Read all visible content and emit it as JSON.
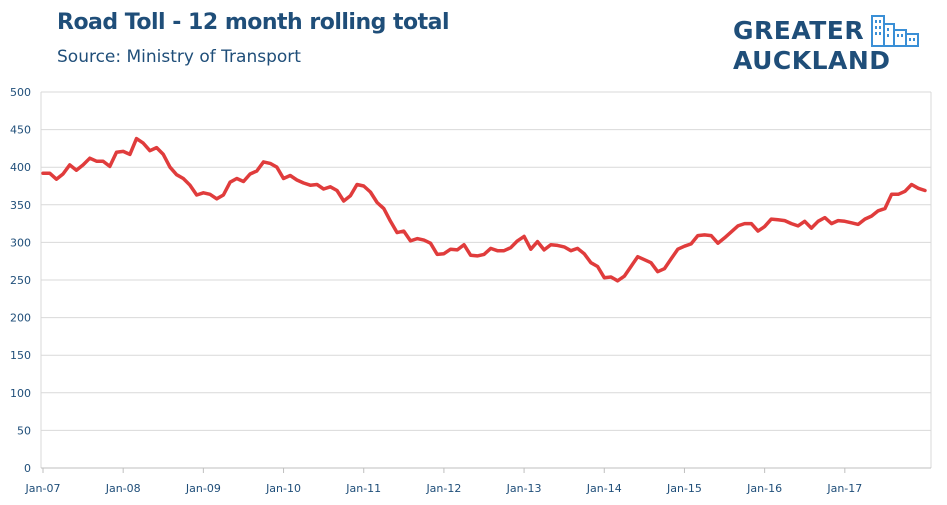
{
  "header": {
    "title": "Road Toll - 12 month rolling total",
    "subtitle": "Source: Ministry of Transport"
  },
  "logo": {
    "line1": "GREATER",
    "line2": "AUCKLAND",
    "icon": "city-buildings-icon"
  },
  "colors": {
    "line": "#e03c3c",
    "title": "#1f4e79",
    "grid": "#d9d9d9",
    "axis_text": "#1f4e79"
  },
  "chart_data": {
    "type": "line",
    "title": "Road Toll - 12 month rolling total",
    "xlabel": "",
    "ylabel": "",
    "ylim": [
      0,
      500
    ],
    "yticks": [
      0,
      50,
      100,
      150,
      200,
      250,
      300,
      350,
      400,
      450,
      500
    ],
    "xticks": [
      "Jan-07",
      "Jan-08",
      "Jan-09",
      "Jan-10",
      "Jan-11",
      "Jan-12",
      "Jan-13",
      "Jan-14",
      "Jan-15",
      "Jan-16",
      "Jan-17"
    ],
    "x_start": "Jan-07",
    "x_end": "Nov-17",
    "grid": true,
    "legend": "none",
    "series": [
      {
        "values": [
          392,
          392,
          384,
          391,
          403,
          396,
          403,
          412,
          408,
          408,
          401,
          420,
          421,
          417,
          438,
          432,
          422,
          426,
          417,
          400,
          390,
          385,
          376,
          363,
          366,
          364,
          358,
          363,
          380,
          385,
          381,
          391,
          395,
          407,
          405,
          400,
          385,
          389,
          383,
          379,
          376,
          377,
          371,
          374,
          369,
          355,
          362,
          377,
          375,
          367,
          353,
          345,
          328,
          313,
          315,
          302,
          305,
          303,
          299,
          284,
          285,
          291,
          290,
          297,
          283,
          282,
          284,
          292,
          289,
          289,
          293,
          302,
          308,
          291,
          301,
          290,
          297,
          296,
          294,
          289,
          292,
          285,
          273,
          268,
          253,
          254,
          249,
          255,
          268,
          281,
          277,
          273,
          261,
          265,
          278,
          291,
          295,
          298,
          309,
          310,
          309,
          299,
          306,
          314,
          322,
          325,
          325,
          315,
          321,
          331,
          330,
          329,
          325,
          322,
          328,
          319,
          328,
          333,
          325,
          329,
          328,
          326,
          324,
          331,
          335,
          342,
          345,
          364,
          364,
          368,
          377,
          372,
          369
        ]
      }
    ]
  }
}
